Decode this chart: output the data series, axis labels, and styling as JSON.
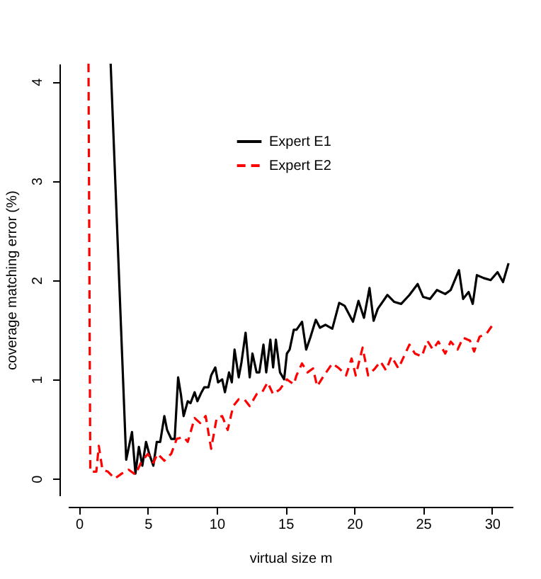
{
  "chart_data": {
    "type": "line",
    "xlabel": "virtual size m",
    "ylabel": "coverage matching error (%)",
    "xlim": [
      -0.8,
      31.5
    ],
    "ylim": [
      -0.17,
      4.18
    ],
    "xticks": [
      0,
      5,
      10,
      15,
      20,
      25,
      30
    ],
    "yticks": [
      0,
      1,
      2,
      3,
      4
    ],
    "grid": false,
    "legend": "top",
    "marker": "none",
    "series": [
      {
        "name": "Expert E1",
        "color": "#000000",
        "line_style": "solid",
        "x": [
          2.3,
          3.43,
          3.85,
          4.1,
          4.35,
          4.6,
          4.87,
          5.1,
          5.4,
          5.65,
          5.9,
          6.2,
          6.4,
          6.7,
          6.95,
          7.2,
          7.4,
          7.6,
          7.9,
          8.1,
          8.4,
          8.6,
          8.9,
          9.1,
          9.4,
          9.6,
          9.9,
          10.1,
          10.4,
          10.6,
          10.9,
          11.1,
          11.3,
          11.6,
          11.8,
          12.1,
          12.4,
          12.6,
          12.9,
          13.1,
          13.4,
          13.6,
          13.9,
          14.1,
          14.3,
          14.6,
          14.9,
          15.1,
          15.3,
          15.6,
          15.8,
          16.2,
          16.5,
          16.8,
          17.2,
          17.5,
          17.9,
          18.4,
          18.9,
          19.3,
          19.9,
          20.3,
          20.7,
          21.1,
          21.4,
          21.7,
          22.4,
          22.9,
          23.4,
          24.0,
          24.6,
          25.0,
          25.5,
          26.0,
          26.6,
          27.0,
          27.6,
          27.9,
          28.3,
          28.6,
          28.9,
          29.4,
          29.9,
          30.4,
          30.8,
          31.2
        ],
        "values": [
          4.18,
          0.19,
          0.47,
          0.05,
          0.32,
          0.13,
          0.37,
          0.25,
          0.13,
          0.37,
          0.37,
          0.63,
          0.49,
          0.4,
          0.4,
          1.02,
          0.85,
          0.63,
          0.78,
          0.76,
          0.87,
          0.78,
          0.87,
          0.92,
          0.92,
          1.04,
          1.12,
          0.97,
          1.0,
          0.87,
          1.07,
          0.97,
          1.3,
          1.02,
          1.17,
          1.47,
          1.02,
          1.26,
          1.07,
          1.07,
          1.35,
          1.07,
          1.4,
          1.12,
          1.4,
          1.07,
          1.0,
          1.26,
          1.3,
          1.5,
          1.5,
          1.58,
          1.3,
          1.42,
          1.6,
          1.52,
          1.55,
          1.51,
          1.77,
          1.74,
          1.58,
          1.79,
          1.62,
          1.92,
          1.59,
          1.71,
          1.85,
          1.78,
          1.76,
          1.85,
          1.96,
          1.83,
          1.81,
          1.9,
          1.86,
          1.9,
          2.1,
          1.81,
          1.88,
          1.76,
          2.05,
          2.02,
          2.0,
          2.08,
          1.98,
          2.17
        ]
      },
      {
        "name": "Expert E2",
        "color": "#ff0000",
        "line_style": "dashed",
        "x": [
          0.69,
          0.82,
          1.26,
          1.44,
          1.7,
          2.1,
          2.6,
          3.1,
          3.6,
          4.1,
          4.5,
          5.0,
          5.4,
          5.7,
          6.2,
          6.7,
          7.1,
          7.6,
          7.9,
          8.4,
          8.8,
          9.2,
          9.6,
          10.0,
          10.4,
          10.8,
          11.2,
          11.6,
          12.0,
          12.4,
          12.9,
          13.3,
          13.7,
          14.1,
          14.6,
          15.1,
          15.6,
          15.8,
          16.2,
          16.6,
          17.0,
          17.3,
          17.8,
          18.4,
          18.9,
          19.4,
          19.8,
          20.1,
          20.6,
          21.0,
          21.5,
          21.9,
          22.3,
          22.7,
          23.2,
          23.6,
          24.0,
          24.4,
          24.9,
          25.3,
          25.7,
          26.1,
          26.6,
          27.0,
          27.5,
          27.9,
          28.4,
          28.7,
          29.1,
          29.6,
          30.0
        ],
        "values": [
          4.18,
          0.07,
          0.07,
          0.33,
          0.09,
          0.07,
          0.0,
          0.05,
          0.09,
          0.04,
          0.16,
          0.25,
          0.16,
          0.25,
          0.18,
          0.25,
          0.4,
          0.42,
          0.37,
          0.61,
          0.56,
          0.63,
          0.3,
          0.61,
          0.63,
          0.49,
          0.73,
          0.8,
          0.8,
          0.73,
          0.85,
          0.87,
          0.97,
          0.85,
          0.9,
          1.0,
          0.95,
          1.04,
          1.16,
          1.07,
          1.11,
          0.93,
          1.04,
          1.16,
          1.11,
          1.04,
          1.21,
          1.04,
          1.32,
          1.04,
          1.11,
          1.18,
          1.09,
          1.23,
          1.11,
          1.23,
          1.35,
          1.26,
          1.23,
          1.39,
          1.3,
          1.38,
          1.26,
          1.38,
          1.3,
          1.42,
          1.39,
          1.28,
          1.43,
          1.46,
          1.54
        ]
      }
    ]
  }
}
